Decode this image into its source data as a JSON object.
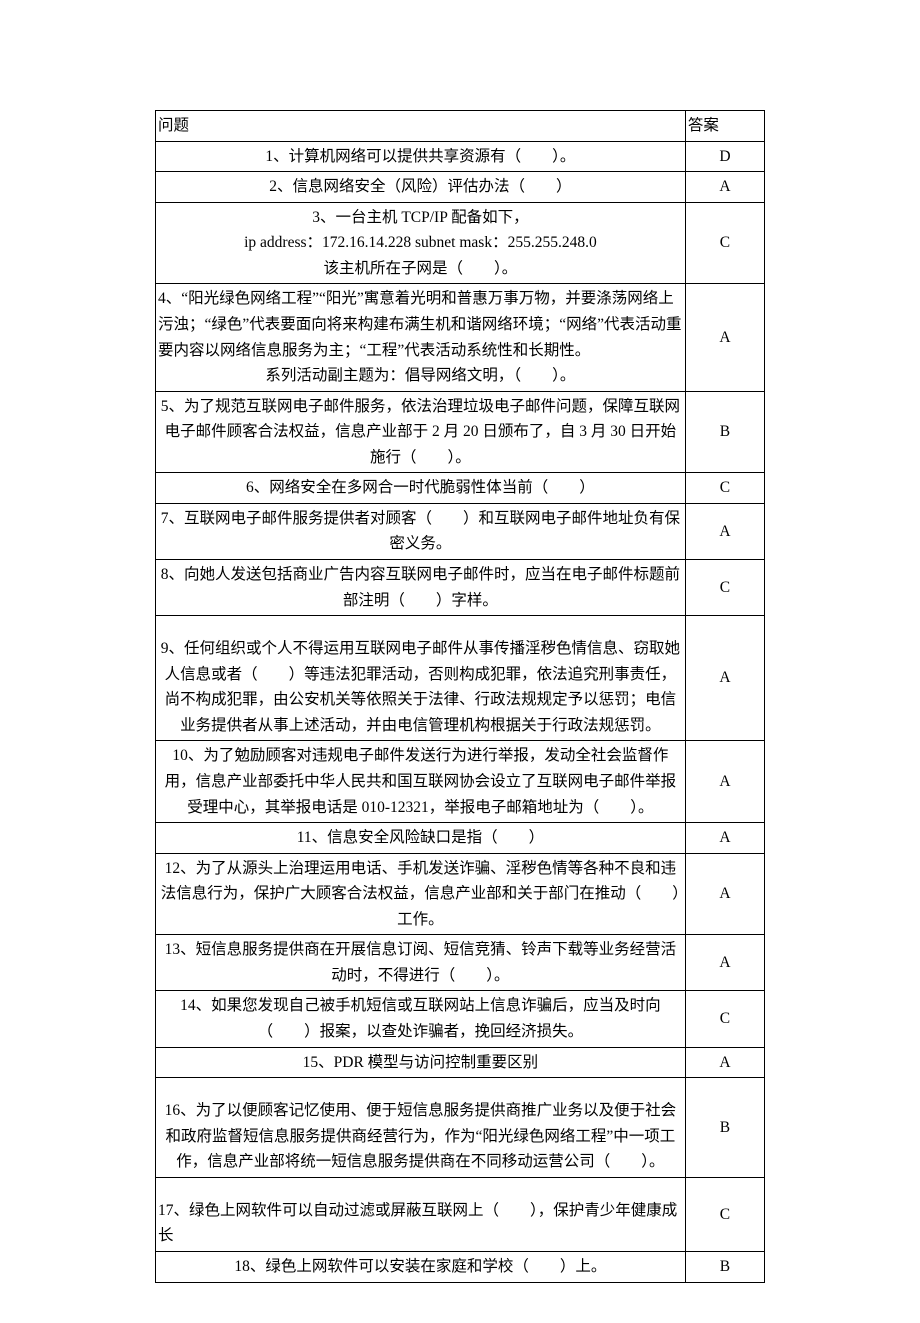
{
  "headers": {
    "question": "问题",
    "answer": "答案"
  },
  "rows": [
    {
      "q": "1、计算机网络可以提供共享资源有（　　）。",
      "a": "D",
      "align": "center"
    },
    {
      "q": "2、信息网络安全（风险）评估办法（　　）",
      "a": "A",
      "align": "center"
    },
    {
      "q": "3、一台主机 TCP/IP 配备如下，\nip address：172.16.14.228  subnet mask：255.255.248.0\n该主机所在子网是（　　）。",
      "a": "C",
      "align": "center",
      "pad": true
    },
    {
      "q": "4、“阳光绿色网络工程”“阳光”寓意着光明和普惠万事万物，并要涤荡网络上污浊；“绿色”代表要面向将来构建布满生机和谐网络环境；“网络”代表活动重要内容以网络信息服务为主；“工程”代表活动系统性和长期性。系列活动副主题为：倡导网络文明，（　　）。",
      "a": "A",
      "align": "left",
      "lastCenter": true
    },
    {
      "q": "5、为了规范互联网电子邮件服务，依法治理垃圾电子邮件问题，保障互联网电子邮件顾客合法权益，信息产业部于 2 月 20 日颁布了，自 3 月 30 日开始施行（　　）。",
      "a": "B",
      "align": "left",
      "lastCenter": true
    },
    {
      "q": "6、网络安全在多网合一时代脆弱性体当前（　　）",
      "a": "C",
      "align": "center"
    },
    {
      "q": "7、互联网电子邮件服务提供者对顾客（　　）和互联网电子邮件地址负有保密义务。",
      "a": "A",
      "align": "left",
      "lastCenter": true
    },
    {
      "q": "8、向她人发送包括商业广告内容互联网电子邮件时，应当在电子邮件标题前部注明（　　）字样。",
      "a": "C",
      "align": "left",
      "lastCenter": true
    },
    {
      "q": "9、任何组织或个人不得运用互联网电子邮件从事传播淫秽色情信息、窃取她人信息或者（　　）等违法犯罪活动，否则构成犯罪，依法追究刑事责任，尚不构成犯罪，由公安机关等依照关于法律、行政法规规定予以惩罚；电信业务提供者从事上述活动，并由电信管理机构根据关于行政法规惩罚。",
      "a": "A",
      "align": "left",
      "pad": true,
      "lastCenter": true
    },
    {
      "q": "10、为了勉励顾客对违规电子邮件发送行为进行举报，发动全社会监督作用，信息产业部委托中华人民共和国互联网协会设立了互联网电子邮件举报受理中心，其举报电话是 010-12321，举报电子邮箱地址为（　　）。",
      "a": "A",
      "align": "left",
      "lastCenter": true
    },
    {
      "q": "11、信息安全风险缺口是指（　　）",
      "a": "A",
      "align": "center"
    },
    {
      "q": "12、为了从源头上治理运用电话、手机发送诈骗、淫秽色情等各种不良和违法信息行为，保护广大顾客合法权益，信息产业部和关于部门在推动（　　）工作。",
      "a": "A",
      "align": "left",
      "lastCenter": true
    },
    {
      "q": "13、短信息服务提供商在开展信息订阅、短信竞猜、铃声下载等业务经营活动时，不得进行（　　）。",
      "a": "A",
      "align": "left",
      "lastCenter": true
    },
    {
      "q": "14、如果您发现自己被手机短信或互联网站上信息诈骗后，应当及时向（　　）报案，以查处诈骗者，挽回经济损失。",
      "a": "C",
      "align": "left",
      "lastCenter": true
    },
    {
      "q": "15、PDR 模型与访问控制重要区别",
      "a": "A",
      "align": "center"
    },
    {
      "q": "16、为了以便顾客记忆使用、便于短信息服务提供商推广业务以及便于社会和政府监督短信息服务提供商经营行为，作为“阳光绿色网络工程”中一项工作，信息产业部将统一短信息服务提供商在不同移动运营公司（　　）。",
      "a": "B",
      "align": "left",
      "pad": true,
      "lastCenter": true
    },
    {
      "q": "17、绿色上网软件可以自动过滤或屏蔽互联网上（　　），保护青少年健康成长",
      "a": "C",
      "align": "left",
      "pad": true
    },
    {
      "q": "18、绿色上网软件可以安装在家庭和学校（　　）上。",
      "a": "B",
      "align": "center"
    }
  ]
}
